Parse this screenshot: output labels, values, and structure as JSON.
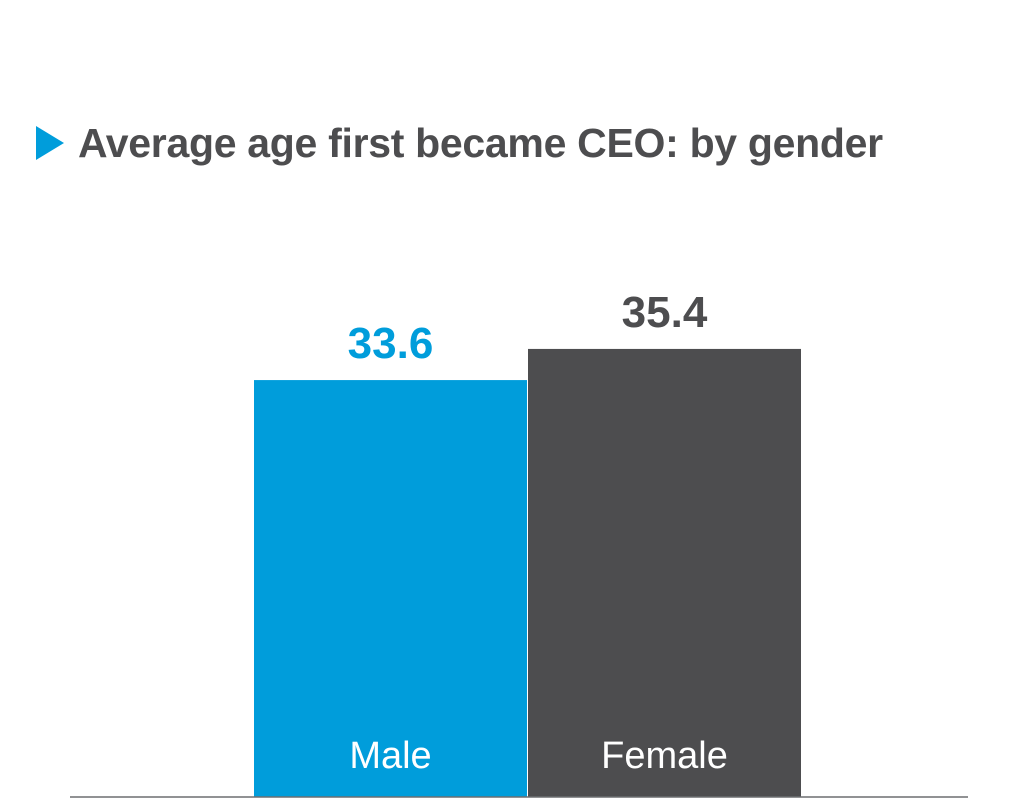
{
  "chart_data": {
    "type": "bar",
    "title": "Average age first became CEO: by gender",
    "categories": [
      "Male",
      "Female"
    ],
    "values": [
      33.6,
      35.4
    ],
    "value_labels": [
      "33.6",
      "35.4"
    ],
    "colors": [
      "#009ddb",
      "#4d4d4f"
    ],
    "label_colors": [
      "#009ddb",
      "#4d4d4f"
    ],
    "xlabel": "",
    "ylabel": "",
    "grid": false,
    "legend": "none"
  },
  "title_marker_color": "#009ddb"
}
